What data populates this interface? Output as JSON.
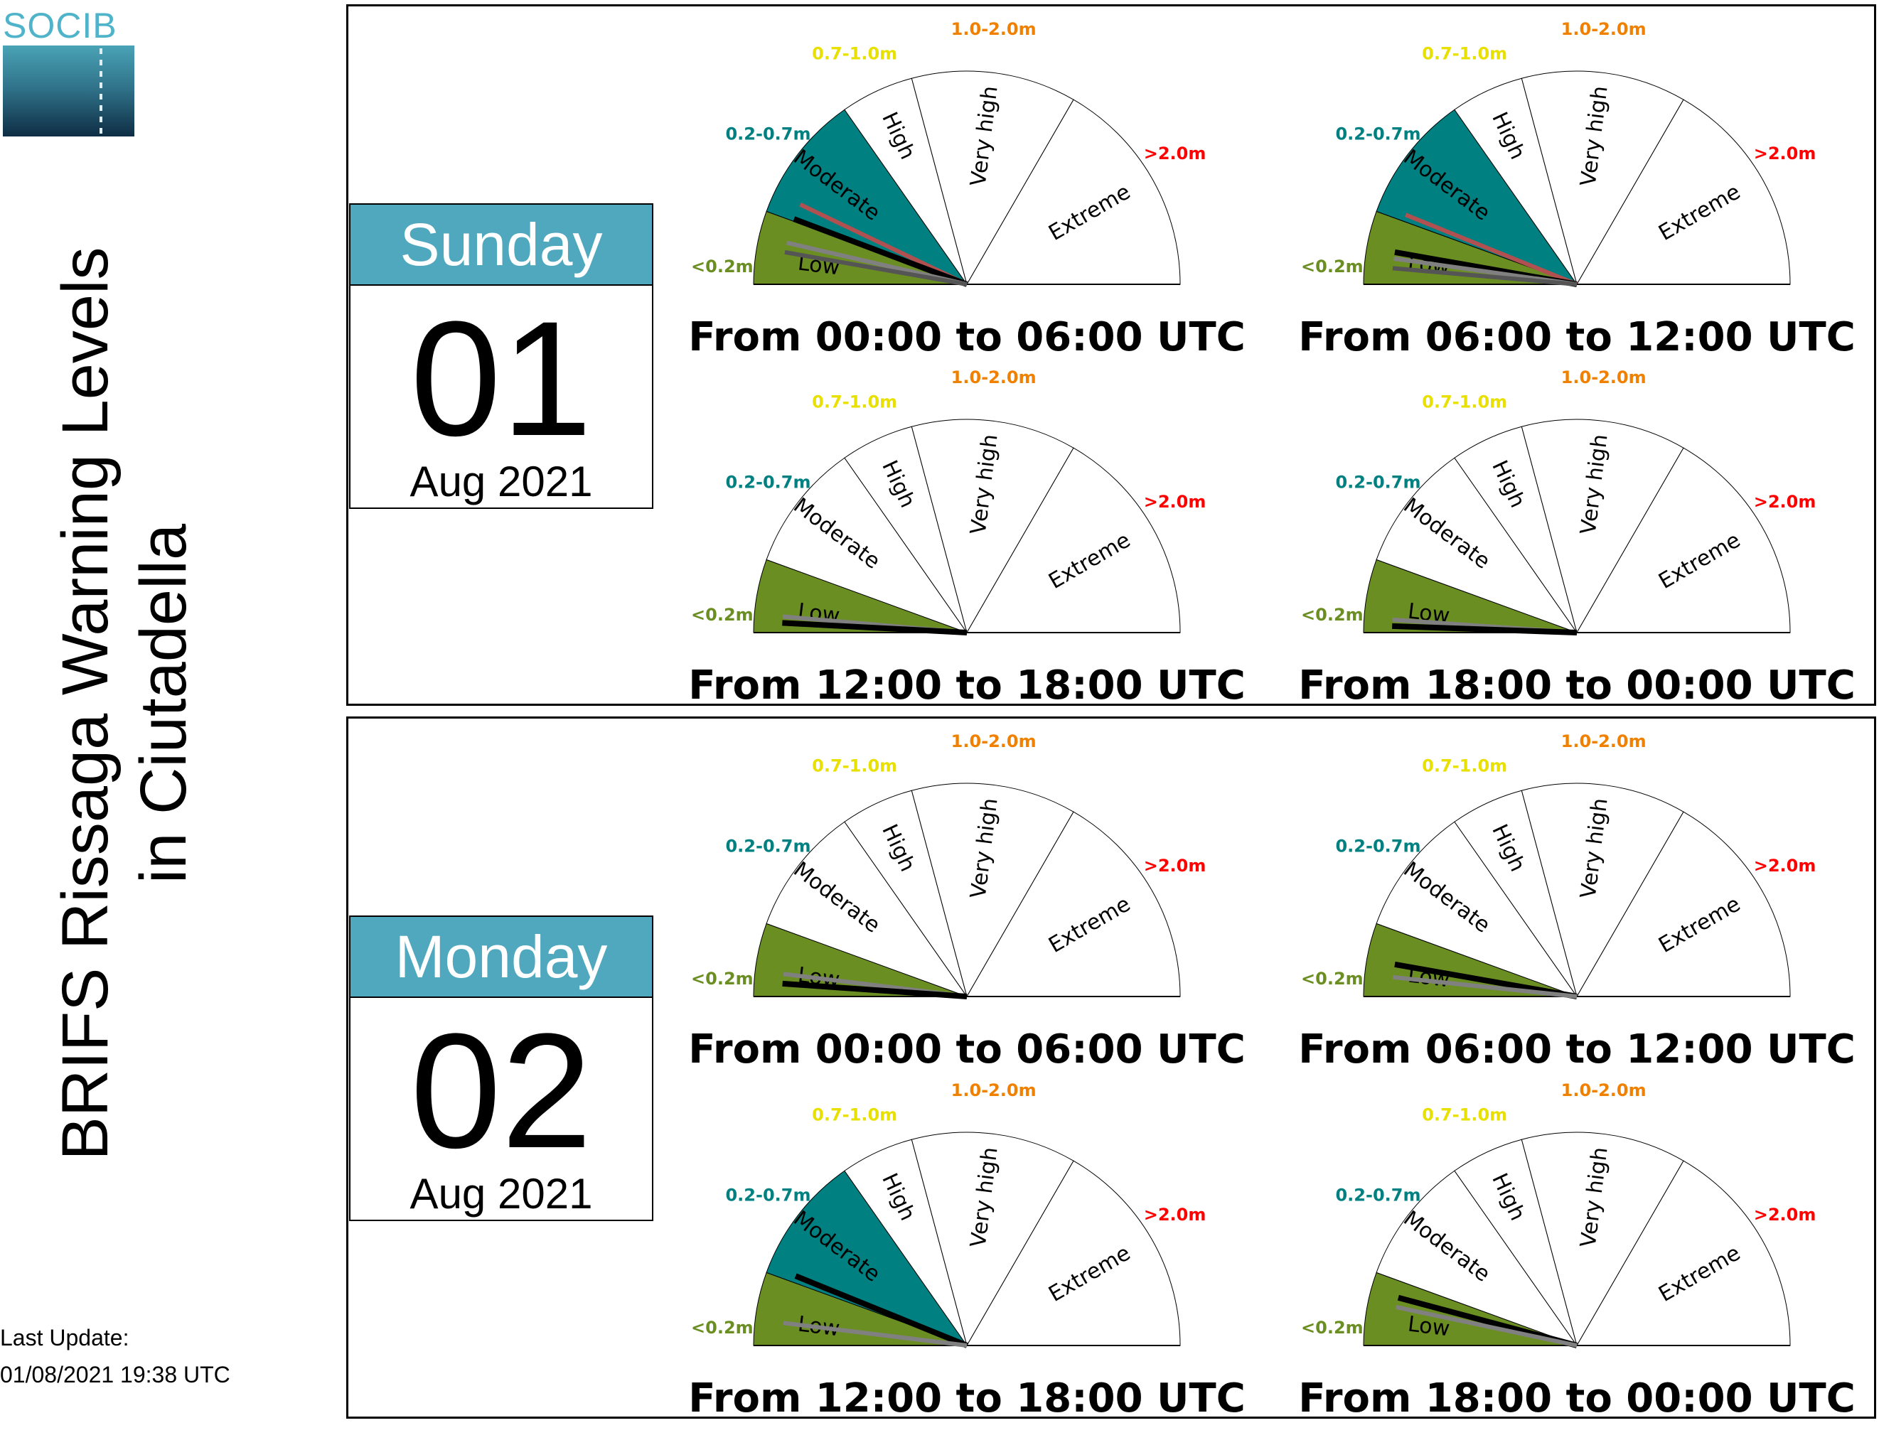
{
  "logo": {
    "text": "SOCIB"
  },
  "title": {
    "line1": "BRIFS Rissaga Warning Levels",
    "line2": "in Ciutadella"
  },
  "last_update": {
    "label": "Last Update:",
    "value": "01/08/2021 19:38 UTC"
  },
  "gauge_legend": {
    "levels": [
      "Low",
      "Moderate",
      "High",
      "Very high",
      "Extreme"
    ],
    "ranges": [
      "<0.2m",
      "0.2-0.7m",
      "0.7-1.0m",
      "1.0-2.0m",
      ">2.0m"
    ],
    "colors": {
      "low": "#6b8e23",
      "moderate": "#008080",
      "high": "#ffd700",
      "veryhigh": "#ff8c00",
      "extreme": "#ff0000",
      "forecast_line": "#000000",
      "member_dark": "#555555",
      "member_grey": "#808080",
      "member_red": "#b05050"
    },
    "range_colors": [
      "#6b8e23",
      "#008080",
      "#e8e000",
      "#f08000",
      "#ff0000"
    ]
  },
  "days": [
    {
      "weekday": "Sunday",
      "day": "01",
      "month_year": "Aug 2021",
      "periods": [
        {
          "label": "From 00:00 to 06:00 UTC",
          "fill_level": "moderate",
          "needles": [
            {
              "value": 0.28,
              "color": "member_red"
            },
            {
              "value": 0.21,
              "color": "forecast_line"
            },
            {
              "value": 0.13,
              "color": "member_grey"
            },
            {
              "value": 0.1,
              "color": "member_dark"
            }
          ]
        },
        {
          "label": "From 06:00 to 12:00 UTC",
          "fill_level": "moderate",
          "needles": [
            {
              "value": 0.23,
              "color": "member_red"
            },
            {
              "value": 0.1,
              "color": "forecast_line"
            },
            {
              "value": 0.08,
              "color": "member_grey"
            },
            {
              "value": 0.05,
              "color": "member_dark"
            }
          ]
        },
        {
          "label": "From 12:00 to 18:00 UTC",
          "fill_level": "low",
          "needles": [
            {
              "value": 0.05,
              "color": "member_grey"
            },
            {
              "value": 0.03,
              "color": "forecast_line"
            }
          ]
        },
        {
          "label": "From 18:00 to 00:00 UTC",
          "fill_level": "low",
          "needles": [
            {
              "value": 0.04,
              "color": "member_grey"
            },
            {
              "value": 0.02,
              "color": "forecast_line"
            }
          ]
        }
      ]
    },
    {
      "weekday": "Monday",
      "day": "02",
      "month_year": "Aug 2021",
      "periods": [
        {
          "label": "From 00:00 to 06:00 UTC",
          "fill_level": "low",
          "needles": [
            {
              "value": 0.07,
              "color": "member_grey"
            },
            {
              "value": 0.04,
              "color": "forecast_line"
            }
          ]
        },
        {
          "label": "From 06:00 to 12:00 UTC",
          "fill_level": "low",
          "needles": [
            {
              "value": 0.1,
              "color": "forecast_line"
            },
            {
              "value": 0.06,
              "color": "member_grey"
            }
          ]
        },
        {
          "label": "From 12:00 to 18:00 UTC",
          "fill_level": "moderate",
          "needles": [
            {
              "value": 0.23,
              "color": "forecast_line"
            },
            {
              "value": 0.07,
              "color": "member_grey"
            }
          ]
        },
        {
          "label": "From 18:00 to 00:00 UTC",
          "fill_level": "low",
          "needles": [
            {
              "value": 0.15,
              "color": "forecast_line"
            },
            {
              "value": 0.12,
              "color": "member_grey"
            }
          ]
        }
      ]
    }
  ]
}
